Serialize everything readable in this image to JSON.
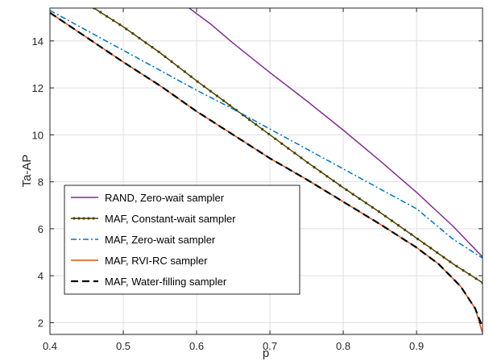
{
  "chart_data": {
    "type": "line",
    "xlabel": "p",
    "ylabel": "Ta-AP",
    "xlim": [
      0.4,
      0.99
    ],
    "ylim": [
      1.5,
      15.4
    ],
    "grid": true,
    "legend_position": "lower-left",
    "x_ticks": [
      "0.4",
      "0.5",
      "0.6",
      "0.7",
      "0.8",
      "0.9"
    ],
    "y_ticks": [
      "2",
      "4",
      "6",
      "8",
      "10",
      "12",
      "14"
    ],
    "series": [
      {
        "name": "RAND, Zero-wait sampler",
        "color": "#7E2F8E",
        "style": "solid",
        "marker": "none",
        "x": [
          0.59,
          0.62,
          0.65,
          0.7,
          0.75,
          0.8,
          0.85,
          0.9,
          0.95,
          0.99
        ],
        "y": [
          15.4,
          14.7,
          13.9,
          12.65,
          11.45,
          10.2,
          8.9,
          7.55,
          6.1,
          4.8
        ]
      },
      {
        "name": "MAF, Constant-wait sampler",
        "color": "#4D4000",
        "style": "solid",
        "marker": "dot",
        "x": [
          0.46,
          0.5,
          0.55,
          0.6,
          0.65,
          0.7,
          0.75,
          0.8,
          0.85,
          0.9,
          0.95,
          0.99
        ],
        "y": [
          15.4,
          14.6,
          13.5,
          12.3,
          11.15,
          10.0,
          8.85,
          7.75,
          6.7,
          5.6,
          4.5,
          3.7
        ]
      },
      {
        "name": "MAF, Zero-wait sampler",
        "color": "#0072BD",
        "style": "dashdot",
        "marker": "none",
        "x": [
          0.4,
          0.45,
          0.5,
          0.55,
          0.6,
          0.65,
          0.7,
          0.75,
          0.8,
          0.85,
          0.9,
          0.95,
          0.99
        ],
        "y": [
          15.3,
          14.45,
          13.6,
          12.75,
          11.9,
          11.1,
          10.25,
          9.4,
          8.55,
          7.7,
          6.85,
          5.55,
          4.75
        ]
      },
      {
        "name": "MAF, RVI-RC sampler",
        "color": "#D95319",
        "style": "solid",
        "marker": "none",
        "x": [
          0.4,
          0.45,
          0.5,
          0.55,
          0.6,
          0.65,
          0.7,
          0.75,
          0.8,
          0.85,
          0.9,
          0.93,
          0.96,
          0.98,
          0.99
        ],
        "y": [
          15.2,
          14.15,
          13.1,
          12.1,
          11.0,
          10.0,
          9.0,
          8.1,
          7.15,
          6.2,
          5.2,
          4.5,
          3.55,
          2.6,
          1.55
        ]
      },
      {
        "name": "MAF, Water-filling sampler",
        "color": "#000000",
        "style": "dashed",
        "marker": "none",
        "x": [
          0.4,
          0.45,
          0.5,
          0.55,
          0.6,
          0.65,
          0.7,
          0.75,
          0.8,
          0.85,
          0.9,
          0.93,
          0.96,
          0.98,
          0.99
        ],
        "y": [
          15.2,
          14.15,
          13.1,
          12.1,
          11.0,
          10.0,
          9.0,
          8.1,
          7.15,
          6.2,
          5.2,
          4.5,
          3.55,
          2.6,
          1.8
        ]
      }
    ]
  }
}
